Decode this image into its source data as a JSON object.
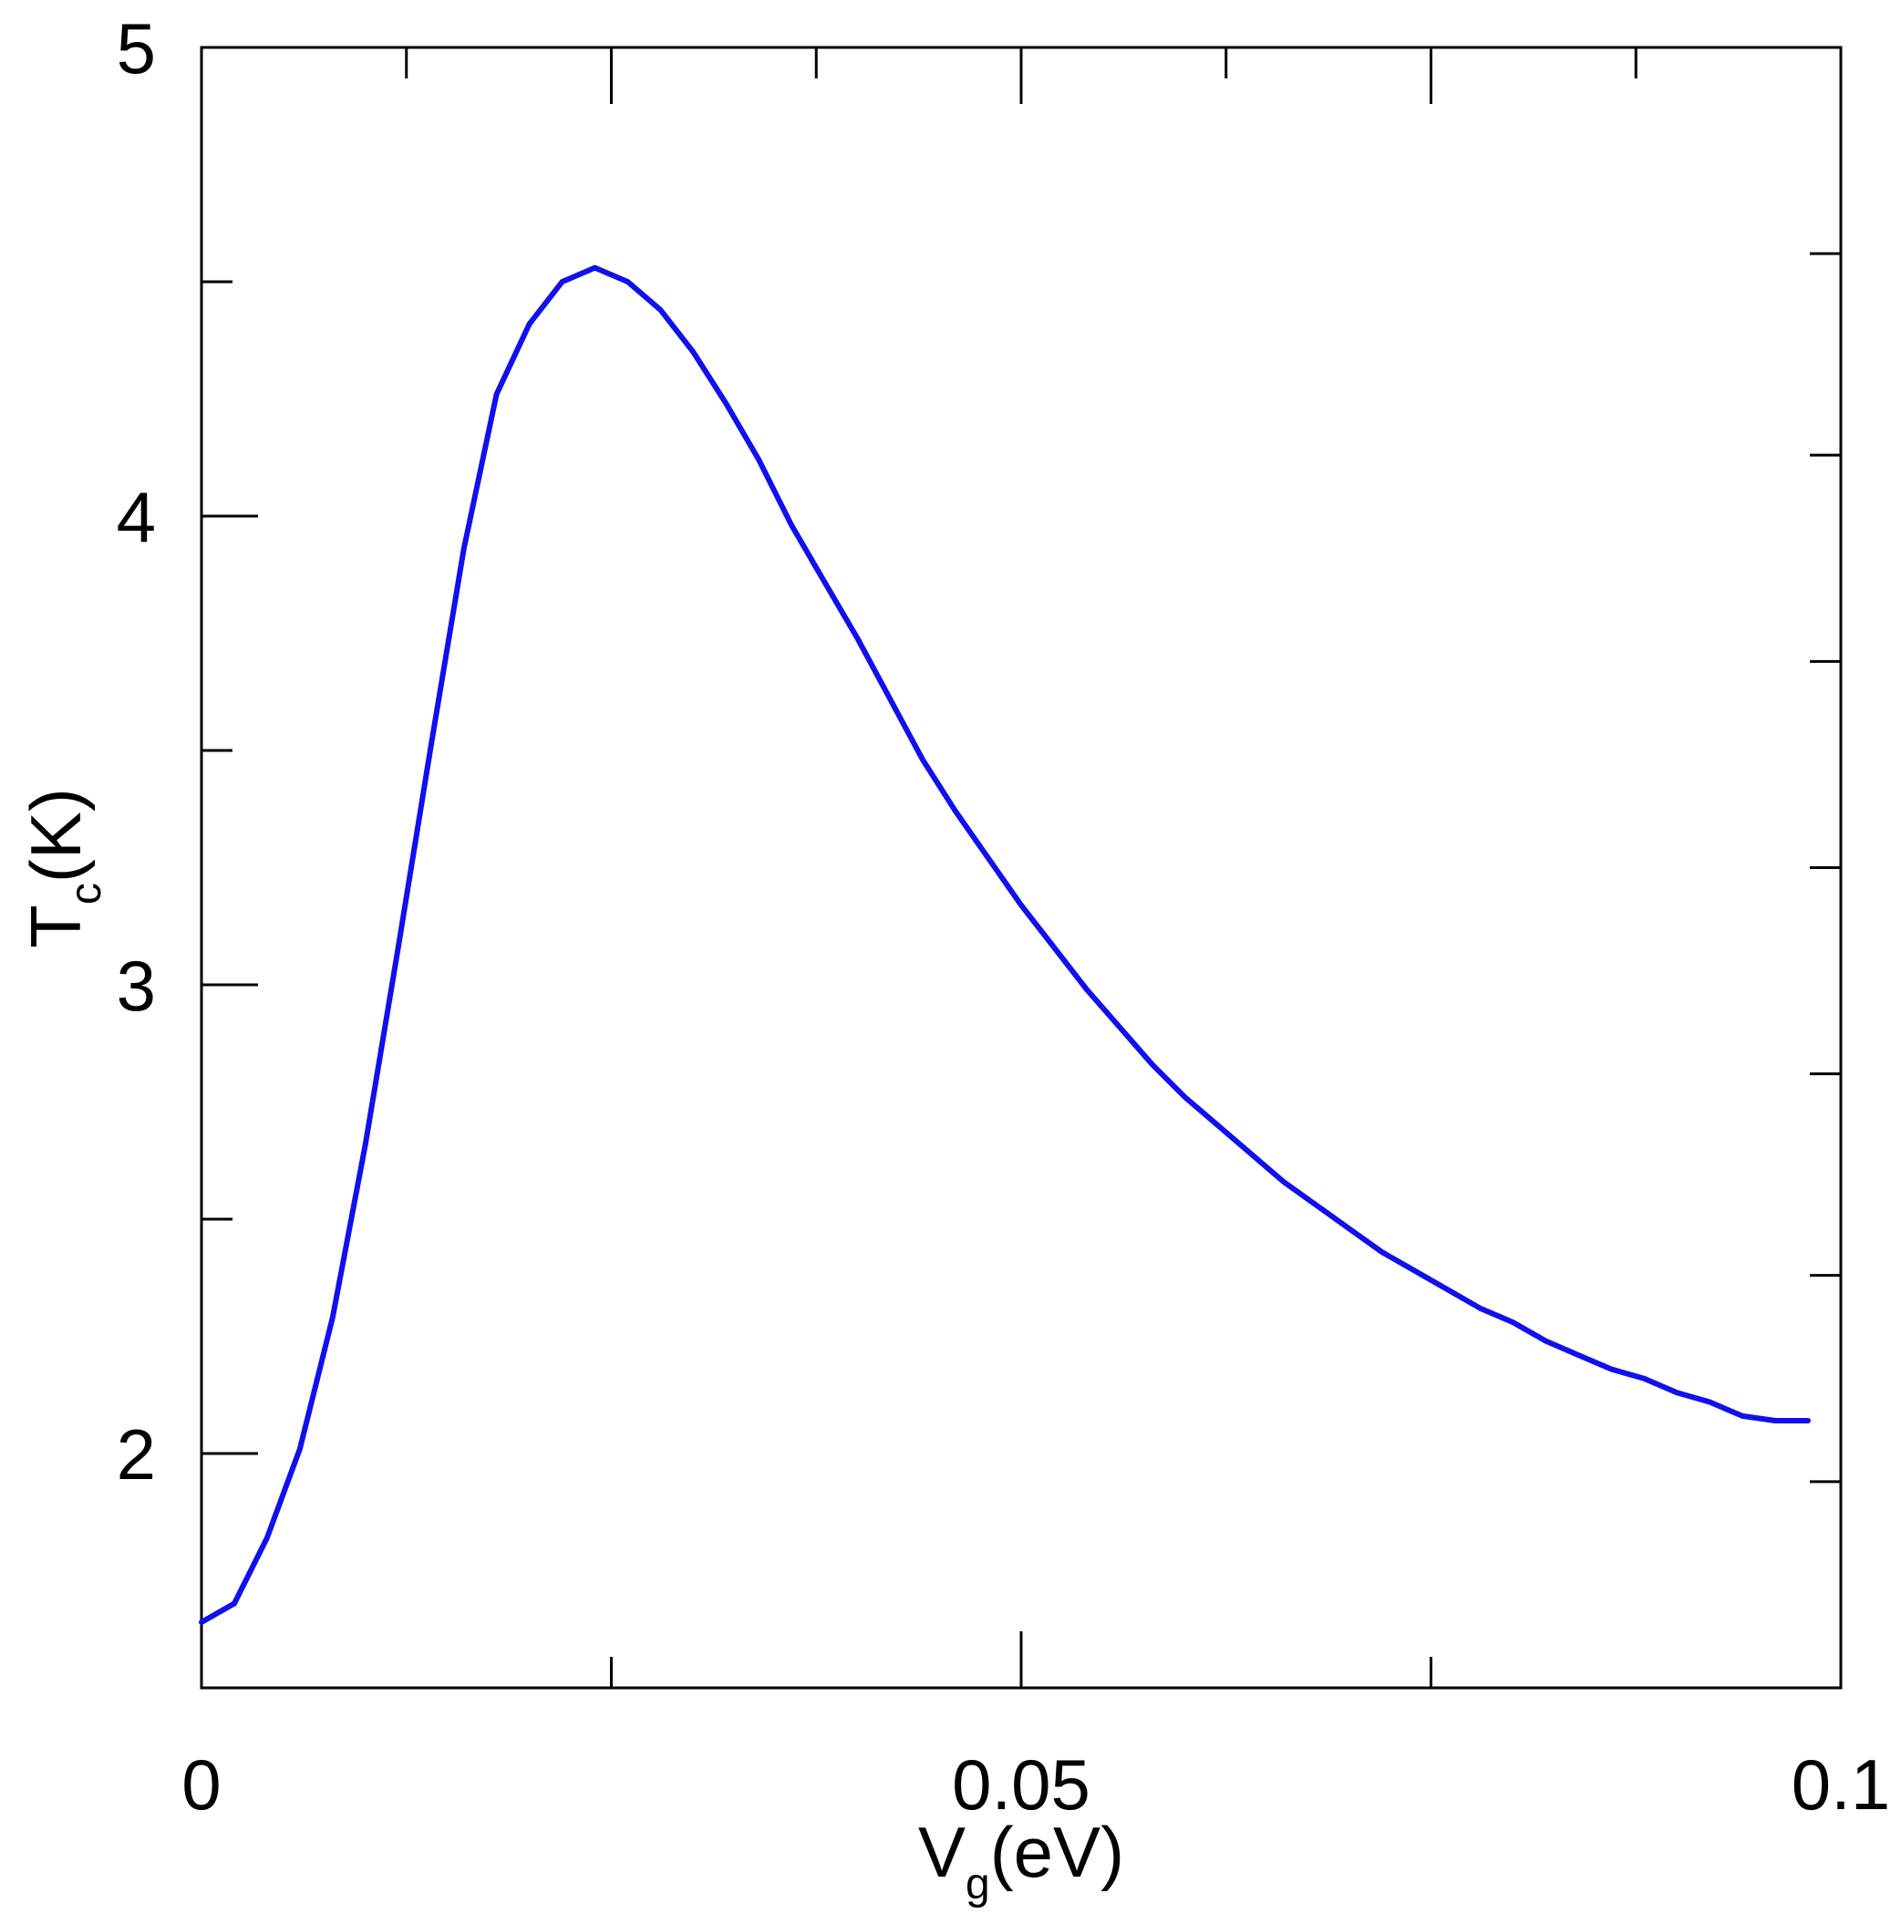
{
  "chart_data": {
    "type": "line",
    "xlabel": {
      "main": "V",
      "sub": "g",
      "unit": "(eV)"
    },
    "ylabel": {
      "main": "T",
      "sub": "c",
      "unit": "(K)"
    },
    "xlim": [
      0,
      0.1
    ],
    "ylim": [
      1.5,
      5
    ],
    "x_ticks": [
      {
        "value": 0,
        "label": "0"
      },
      {
        "value": 0.05,
        "label": "0.05"
      },
      {
        "value": 0.1,
        "label": "0.1"
      }
    ],
    "x_minor_ticks": [
      0.025,
      0.075
    ],
    "x_top_ticks": [
      0.0125,
      0.025,
      0.0375,
      0.05,
      0.0625,
      0.075,
      0.0875
    ],
    "y_ticks": [
      {
        "value": 2,
        "label": "2"
      },
      {
        "value": 3,
        "label": "3"
      },
      {
        "value": 4,
        "label": "4"
      },
      {
        "value": 5,
        "label": "5"
      }
    ],
    "y_minor_ticks": [
      2.5,
      3.5,
      4.5
    ],
    "y_right_ticks": [
      1.94,
      2.38,
      2.81,
      3.25,
      3.69,
      4.13,
      4.56
    ],
    "grid": false,
    "line_color": "#1010ee",
    "series": [
      {
        "x": [
          0,
          0.002,
          0.004,
          0.006,
          0.008,
          0.01,
          0.012,
          0.014,
          0.016,
          0.018,
          0.02,
          0.022,
          0.024,
          0.026,
          0.028,
          0.03,
          0.032,
          0.034,
          0.036,
          0.038,
          0.04,
          0.042,
          0.044,
          0.046,
          0.048,
          0.05,
          0.052,
          0.054,
          0.056,
          0.058,
          0.06,
          0.062,
          0.064,
          0.066,
          0.068,
          0.07,
          0.072,
          0.074,
          0.076,
          0.078,
          0.08,
          0.082,
          0.084,
          0.086,
          0.088,
          0.09,
          0.092,
          0.094,
          0.096,
          0.098
        ],
        "y": [
          1.64,
          1.68,
          1.82,
          2.01,
          2.29,
          2.66,
          3.08,
          3.51,
          3.93,
          4.26,
          4.41,
          4.5,
          4.53,
          4.5,
          4.44,
          4.35,
          4.24,
          4.12,
          3.98,
          3.86,
          3.74,
          3.61,
          3.48,
          3.37,
          3.27,
          3.17,
          3.08,
          2.99,
          2.91,
          2.83,
          2.76,
          2.7,
          2.64,
          2.58,
          2.53,
          2.48,
          2.43,
          2.39,
          2.35,
          2.31,
          2.28,
          2.24,
          2.21,
          2.18,
          2.16,
          2.13,
          2.11,
          2.08,
          2.07,
          2.07
        ]
      }
    ]
  }
}
